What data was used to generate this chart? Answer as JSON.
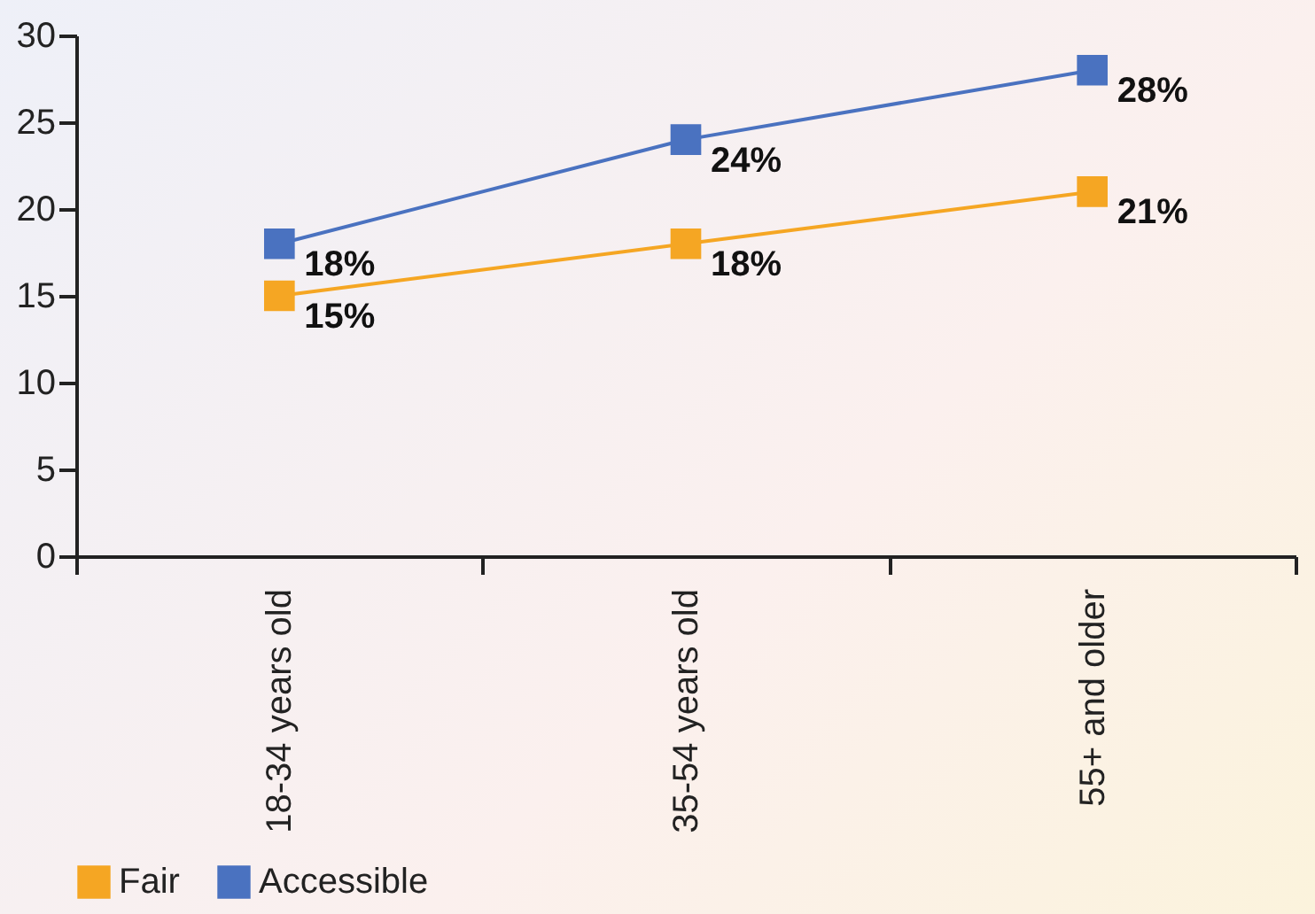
{
  "chart_data": {
    "type": "line",
    "categories": [
      "18-34 years old",
      "35-54 years old",
      "55+ and older"
    ],
    "series": [
      {
        "name": "Fair",
        "color": "#f5a623",
        "values": [
          15,
          18,
          21
        ],
        "value_labels": [
          "15%",
          "18%",
          "21%"
        ]
      },
      {
        "name": "Accessible",
        "color": "#4a72c0",
        "values": [
          18,
          24,
          28
        ],
        "value_labels": [
          "18%",
          "24%",
          "28%"
        ]
      }
    ],
    "ylim": [
      0,
      30
    ],
    "yticks": [
      0,
      5,
      10,
      15,
      20,
      25,
      30
    ],
    "grid": false,
    "legend": "bottom",
    "marker": "square",
    "line_style": "solid"
  }
}
